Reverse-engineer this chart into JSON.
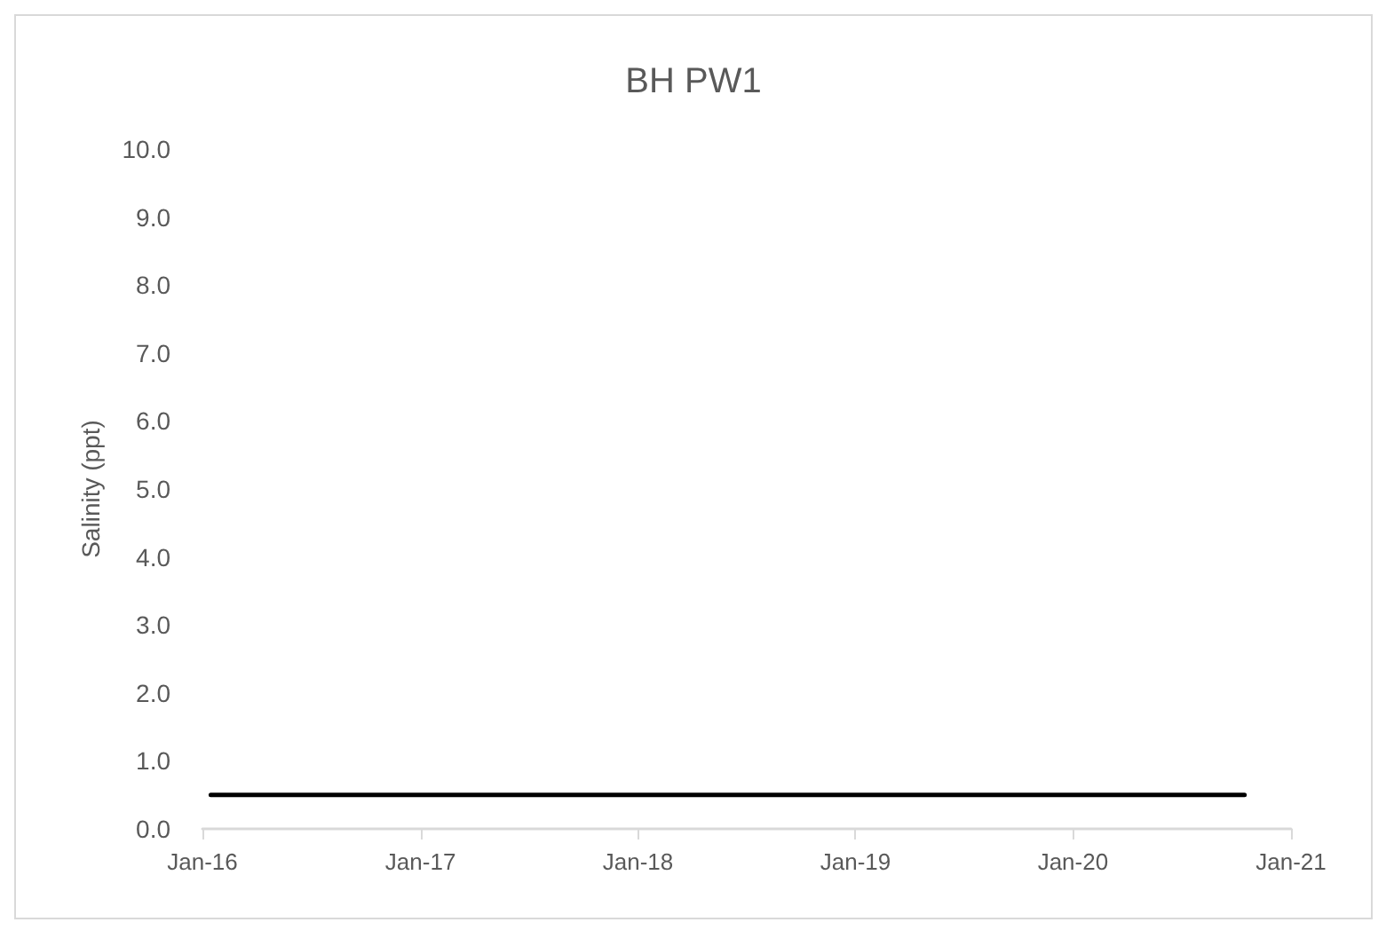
{
  "chart_data": {
    "type": "line",
    "title": "BH PW1",
    "ylabel": "Salinity (ppt)",
    "x": [
      "2016-01-15",
      "2020-10-15"
    ],
    "series": [
      {
        "color": "#000000",
        "values": [
          0.5,
          0.5
        ]
      }
    ],
    "xlim": [
      "2016-01-01",
      "2021-01-01"
    ],
    "xticks": [
      {
        "value": "2016-01-01",
        "label": "Jan-16"
      },
      {
        "value": "2017-01-01",
        "label": "Jan-17"
      },
      {
        "value": "2018-01-01",
        "label": "Jan-18"
      },
      {
        "value": "2019-01-01",
        "label": "Jan-19"
      },
      {
        "value": "2020-01-01",
        "label": "Jan-20"
      },
      {
        "value": "2021-01-01",
        "label": "Jan-21"
      }
    ],
    "ylim": [
      0,
      10
    ],
    "yticks": [
      {
        "value": 0,
        "label": "0.0"
      },
      {
        "value": 1,
        "label": "1.0"
      },
      {
        "value": 2,
        "label": "2.0"
      },
      {
        "value": 3,
        "label": "3.0"
      },
      {
        "value": 4,
        "label": "4.0"
      },
      {
        "value": 5,
        "label": "5.0"
      },
      {
        "value": 6,
        "label": "6.0"
      },
      {
        "value": 7,
        "label": "7.0"
      },
      {
        "value": 8,
        "label": "8.0"
      },
      {
        "value": 9,
        "label": "9.0"
      },
      {
        "value": 10,
        "label": "10.0"
      }
    ],
    "grid": false,
    "marker": "none",
    "line_style": "solid"
  }
}
